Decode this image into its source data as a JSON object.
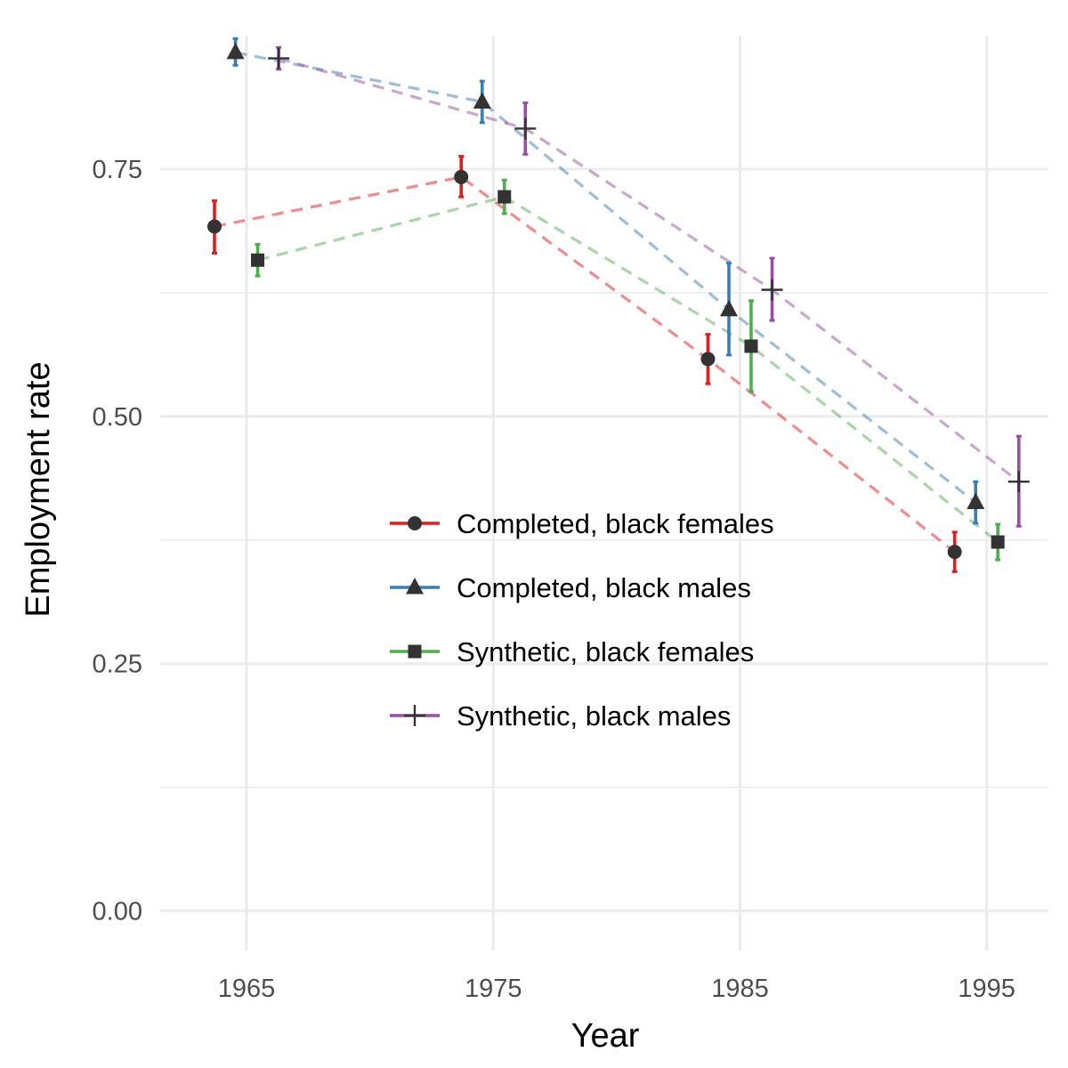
{
  "chart_data": {
    "type": "line",
    "title": "",
    "xlabel": "Year",
    "ylabel": "Employment rate",
    "x_ticks": [
      "1965",
      "1975",
      "1985",
      "1995"
    ],
    "y_ticks": [
      "0.00",
      "0.25",
      "0.50",
      "0.75"
    ],
    "xlim": [
      1961.5,
      1997.5
    ],
    "ylim": [
      -0.04,
      0.885
    ],
    "grid": true,
    "legend_position": "inside-center",
    "line_style": "dashed",
    "error_bars": true,
    "series": [
      {
        "name": "Completed, black females",
        "color": "#E41A1C",
        "marker": "circle",
        "points": [
          {
            "x": 1965,
            "y": 0.692,
            "lo": 0.665,
            "hi": 0.718
          },
          {
            "x": 1975,
            "y": 0.742,
            "lo": 0.722,
            "hi": 0.763
          },
          {
            "x": 1985,
            "y": 0.558,
            "lo": 0.533,
            "hi": 0.583
          },
          {
            "x": 1995,
            "y": 0.363,
            "lo": 0.343,
            "hi": 0.383
          }
        ]
      },
      {
        "name": "Completed, black males",
        "color": "#377EB8",
        "marker": "triangle",
        "points": [
          {
            "x": 1965,
            "y": 0.868,
            "lo": 0.855,
            "hi": 0.882
          },
          {
            "x": 1975,
            "y": 0.818,
            "lo": 0.797,
            "hi": 0.839
          },
          {
            "x": 1985,
            "y": 0.608,
            "lo": 0.562,
            "hi": 0.655
          },
          {
            "x": 1995,
            "y": 0.413,
            "lo": 0.392,
            "hi": 0.434
          }
        ]
      },
      {
        "name": "Synthetic, black females",
        "color": "#4DAF4A",
        "marker": "square",
        "points": [
          {
            "x": 1965,
            "y": 0.658,
            "lo": 0.642,
            "hi": 0.674
          },
          {
            "x": 1975,
            "y": 0.722,
            "lo": 0.705,
            "hi": 0.739
          },
          {
            "x": 1985,
            "y": 0.571,
            "lo": 0.525,
            "hi": 0.617
          },
          {
            "x": 1995,
            "y": 0.373,
            "lo": 0.355,
            "hi": 0.391
          }
        ]
      },
      {
        "name": "Synthetic, black males",
        "color": "#984EA3",
        "marker": "plus",
        "points": [
          {
            "x": 1965,
            "y": 0.862,
            "lo": 0.851,
            "hi": 0.873
          },
          {
            "x": 1975,
            "y": 0.791,
            "lo": 0.765,
            "hi": 0.817
          },
          {
            "x": 1985,
            "y": 0.628,
            "lo": 0.597,
            "hi": 0.66
          },
          {
            "x": 1995,
            "y": 0.434,
            "lo": 0.389,
            "hi": 0.48
          }
        ]
      }
    ]
  }
}
